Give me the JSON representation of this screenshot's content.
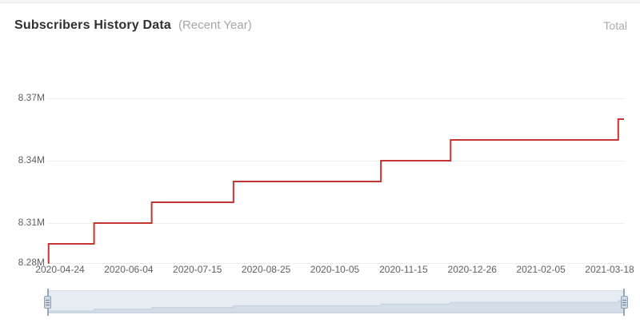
{
  "header": {
    "title": "Subscribers History Data",
    "subtitle": "(Recent Year)",
    "legend_label": "Total"
  },
  "chart_data": {
    "type": "line",
    "line_style": "step-after",
    "title": "Subscribers History Data (Recent Year)",
    "legend": [
      "Total"
    ],
    "legend_position": "top-right",
    "grid": true,
    "xlabel": "",
    "ylabel": "",
    "x_tick_labels": [
      "2020-04-24",
      "2020-06-04",
      "2020-07-15",
      "2020-08-25",
      "2020-10-05",
      "2020-11-15",
      "2020-12-26",
      "2021-02-05",
      "2021-03-18"
    ],
    "y_ticks": [
      {
        "label": "8.28M",
        "value": 8.28
      },
      {
        "label": "8.31M",
        "value": 8.31
      },
      {
        "label": "8.34M",
        "value": 8.34
      },
      {
        "label": "8.37M",
        "value": 8.37
      }
    ],
    "ylim": [
      8.28,
      8.38
    ],
    "unit": "millions of subscribers",
    "series": [
      {
        "name": "Total",
        "color": "#c23531",
        "points": [
          {
            "x_frac": 0.0,
            "value": 8.29
          },
          {
            "x_frac": 0.001,
            "value": 8.3
          },
          {
            "x_frac": 0.08,
            "value": 8.31
          },
          {
            "x_frac": 0.18,
            "value": 8.32
          },
          {
            "x_frac": 0.322,
            "value": 8.33
          },
          {
            "x_frac": 0.578,
            "value": 8.34
          },
          {
            "x_frac": 0.699,
            "value": 8.35
          },
          {
            "x_frac": 0.99,
            "value": 8.36
          },
          {
            "x_frac": 1.0,
            "value": 8.36
          }
        ]
      }
    ],
    "data_zoom": {
      "start_pct": 0,
      "end_pct": 100
    }
  }
}
